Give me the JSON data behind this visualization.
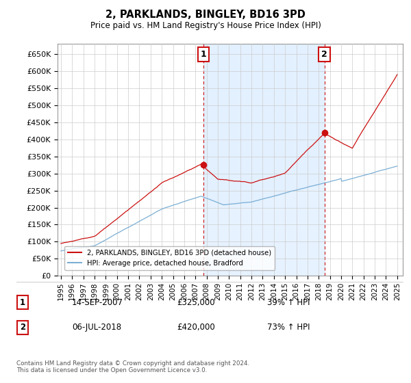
{
  "title": "2, PARKLANDS, BINGLEY, BD16 3PD",
  "subtitle": "Price paid vs. HM Land Registry's House Price Index (HPI)",
  "ylabel_ticks": [
    "£0",
    "£50K",
    "£100K",
    "£150K",
    "£200K",
    "£250K",
    "£300K",
    "£350K",
    "£400K",
    "£450K",
    "£500K",
    "£550K",
    "£600K",
    "£650K"
  ],
  "ytick_values": [
    0,
    50000,
    100000,
    150000,
    200000,
    250000,
    300000,
    350000,
    400000,
    450000,
    500000,
    550000,
    600000,
    650000
  ],
  "ylim": [
    0,
    680000
  ],
  "xlim_min": 1994.7,
  "xlim_max": 2025.5,
  "sale1_date": 2007.71,
  "sale1_price": 325000,
  "sale1_label": "1",
  "sale2_date": 2018.51,
  "sale2_price": 420000,
  "sale2_label": "2",
  "legend_line1": "2, PARKLANDS, BINGLEY, BD16 3PD (detached house)",
  "legend_line2": "HPI: Average price, detached house, Bradford",
  "annotation1": [
    "1",
    "14-SEP-2007",
    "£325,000",
    "39% ↑ HPI"
  ],
  "annotation2": [
    "2",
    "06-JUL-2018",
    "£420,000",
    "73% ↑ HPI"
  ],
  "footnote": "Contains HM Land Registry data © Crown copyright and database right 2024.\nThis data is licensed under the Open Government Licence v3.0.",
  "hpi_color": "#7bafd4",
  "hpi_fill_color": "#ddeeff",
  "price_color": "#cc1111",
  "background_color": "#ffffff",
  "grid_color": "#cccccc",
  "label_box_color": "#cc1111"
}
